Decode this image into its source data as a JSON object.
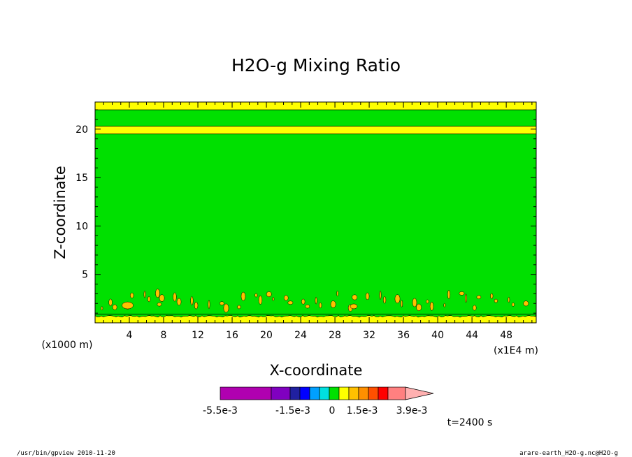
{
  "chart_data": {
    "type": "heatmap",
    "title": "H2O-g Mixing Ratio",
    "xlabel": "X-coordinate",
    "ylabel": "Z-coordinate",
    "x_unit_left": "(x1000 m)",
    "x_unit_right": "(x1E4 m)",
    "xlim": [
      0,
      51.5
    ],
    "ylim": [
      0,
      22.8
    ],
    "x_ticks": [
      4,
      8,
      12,
      16,
      20,
      24,
      28,
      32,
      36,
      40,
      44,
      48
    ],
    "y_ticks": [
      5,
      10,
      15,
      20
    ],
    "grid": false,
    "bands": [
      {
        "z_from": 0.0,
        "z_to": 0.9,
        "level": "yellow"
      },
      {
        "z_from": 0.9,
        "z_to": 19.5,
        "level": "green"
      },
      {
        "z_from": 19.5,
        "z_to": 20.3,
        "level": "yellow"
      },
      {
        "z_from": 20.3,
        "z_to": 22.0,
        "level": "green"
      },
      {
        "z_from": 22.0,
        "z_to": 22.8,
        "level": "yellow"
      }
    ],
    "colorbar": {
      "colors": [
        "#b000b0",
        "#8000c0",
        "#2020a0",
        "#0000ff",
        "#00a0ff",
        "#00e0e0",
        "#00e000",
        "#ffff00",
        "#ffc000",
        "#ff9000",
        "#ff5000",
        "#ff0000",
        "#ff8080",
        "#ffb0b0"
      ],
      "labels": [
        "-5.5e-3",
        "-1.5e-3",
        "0",
        "1.5e-3",
        "3.9e-3"
      ]
    },
    "time_label": "t=2400 s"
  },
  "colors": {
    "green": "#00e000",
    "yellow": "#ffff00",
    "orange": "#ffc000"
  },
  "footer": {
    "left": "/usr/bin/gpview  2010-11-20",
    "right": "arare-earth_H2O-g.nc@H2O-g"
  }
}
